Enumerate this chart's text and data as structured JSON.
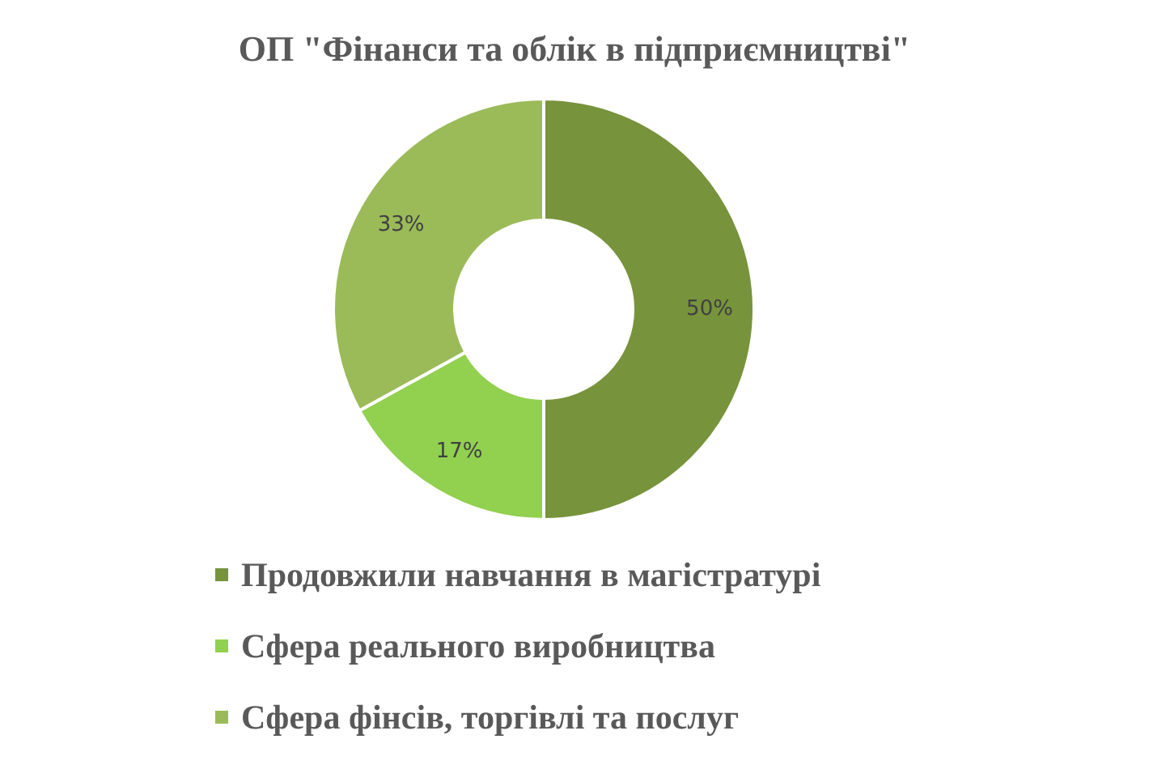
{
  "chart_data": {
    "type": "donut",
    "title": "ОП \"Фінанси та облік в підприємництві\"",
    "categories": [
      "Продовжили навчання в магістратурі",
      "Сфера реального виробництва",
      "Сфера фінсів, торгівлі та послуг"
    ],
    "values": [
      50,
      17,
      33
    ],
    "colors": [
      "#77933c",
      "#92d050",
      "#9bbb59"
    ],
    "value_labels": [
      "50%",
      "17%",
      "33%"
    ],
    "legend": "bottom"
  }
}
